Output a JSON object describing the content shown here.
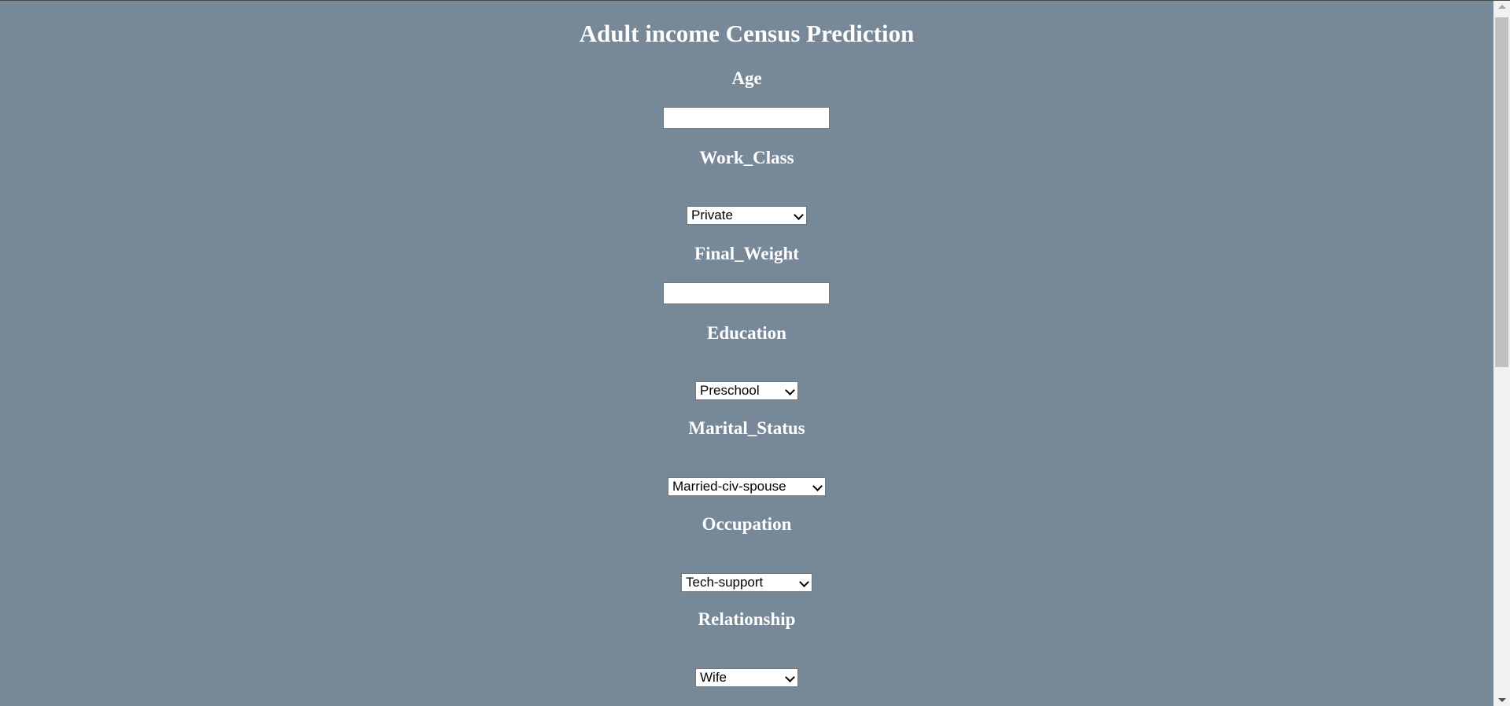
{
  "page": {
    "title": "Adult income Census Prediction"
  },
  "form": {
    "age": {
      "label": "Age",
      "value": ""
    },
    "work_class": {
      "label": "Work_Class",
      "selected": "Private"
    },
    "final_weight": {
      "label": "Final_Weight",
      "value": ""
    },
    "education": {
      "label": "Education",
      "selected": "Preschool"
    },
    "marital_status": {
      "label": "Marital_Status",
      "selected": "Married-civ-spouse"
    },
    "occupation": {
      "label": "Occupation",
      "selected": "Tech-support"
    },
    "relationship": {
      "label": "Relationship",
      "selected": "Wife"
    }
  },
  "colors": {
    "background": "#778899",
    "text": "#ffffff"
  },
  "icons": {
    "select_arrow": "chevron-down-icon"
  }
}
